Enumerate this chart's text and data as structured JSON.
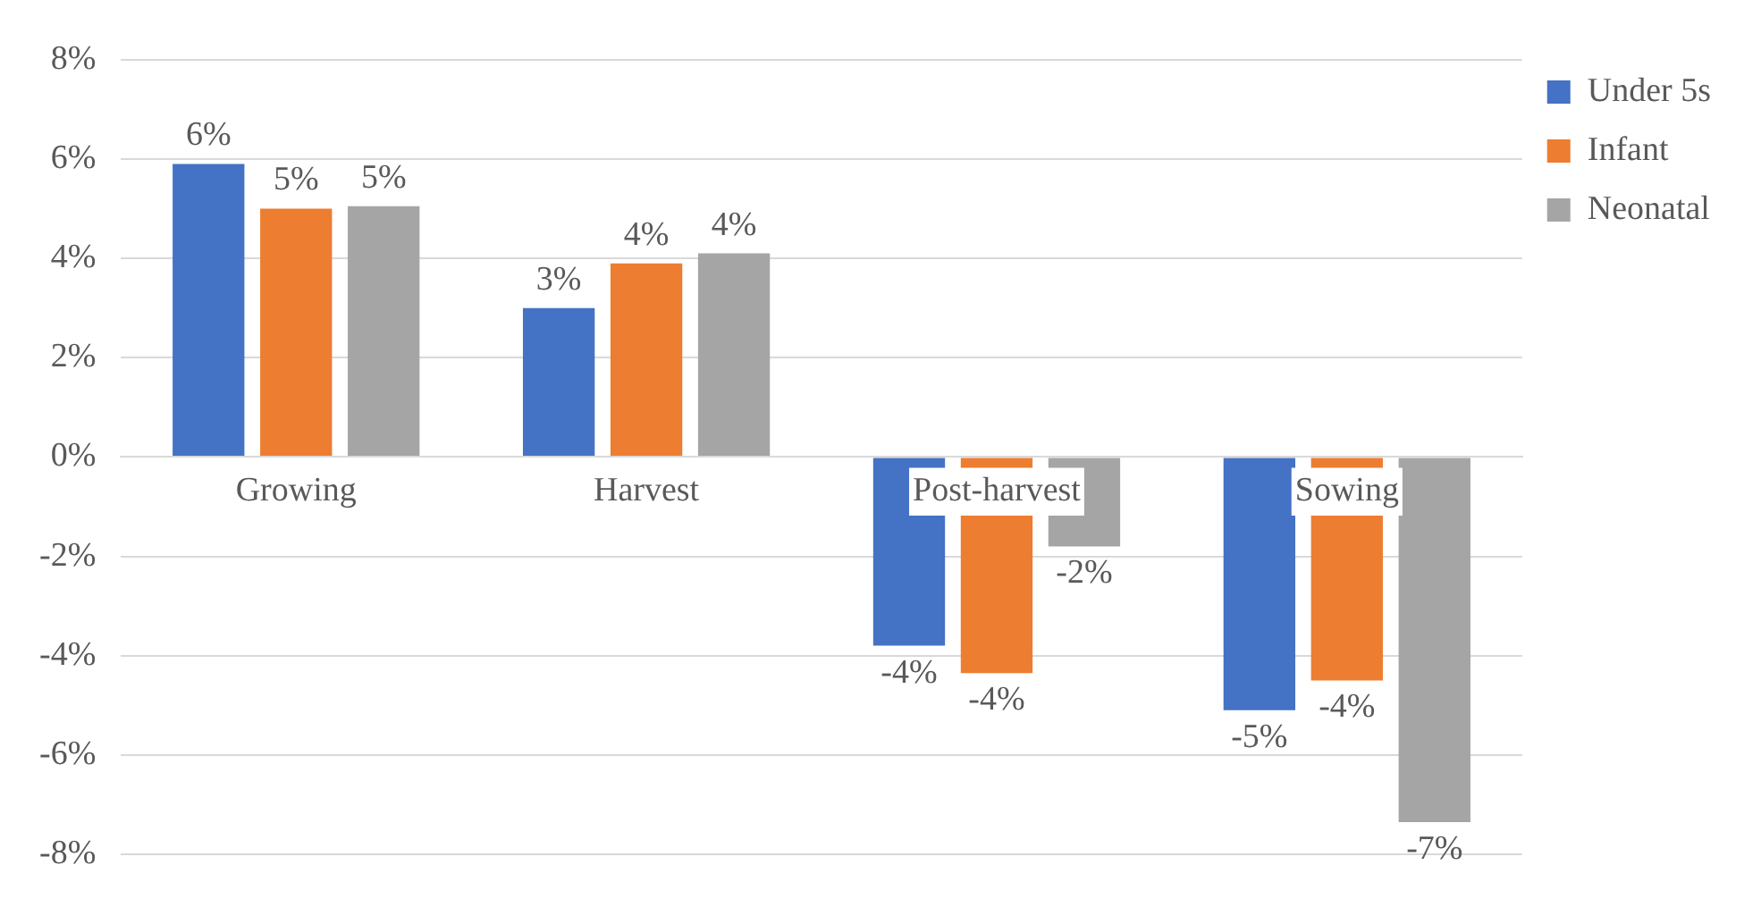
{
  "chart_data": {
    "type": "bar",
    "categories": [
      "Growing",
      "Harvest",
      "Post-harvest",
      "Sowing"
    ],
    "series": [
      {
        "name": "Under 5s",
        "color": "#4472c4",
        "values": [
          5.9,
          3.0,
          -3.8,
          -5.1
        ],
        "value_labels": [
          "6%",
          "3%",
          "-4%",
          "-5%"
        ]
      },
      {
        "name": "Infant",
        "color": "#ed7d31",
        "values": [
          5.0,
          3.9,
          -4.35,
          -4.5
        ],
        "value_labels": [
          "5%",
          "4%",
          "-4%",
          "-4%"
        ]
      },
      {
        "name": "Neonatal",
        "color": "#a5a5a5",
        "values": [
          5.05,
          4.1,
          -1.8,
          -7.35
        ],
        "value_labels": [
          "5%",
          "4%",
          "-2%",
          "-7%"
        ]
      }
    ],
    "ylim": [
      -8,
      8
    ],
    "yticks": [
      {
        "value": -8,
        "label": "-8%"
      },
      {
        "value": -6,
        "label": "-6%"
      },
      {
        "value": -4,
        "label": "-4%"
      },
      {
        "value": -2,
        "label": "-2%"
      },
      {
        "value": 0,
        "label": "0%"
      },
      {
        "value": 2,
        "label": "2%"
      },
      {
        "value": 4,
        "label": "4%"
      },
      {
        "value": 6,
        "label": "6%"
      },
      {
        "value": 8,
        "label": "8%"
      }
    ],
    "grid": "y",
    "legend": "right"
  }
}
